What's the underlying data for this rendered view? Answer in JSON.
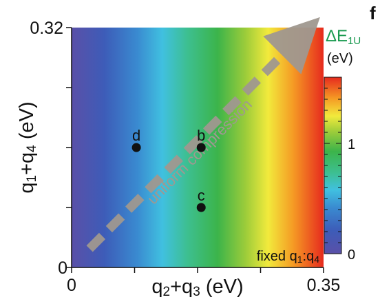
{
  "chart_data": {
    "type": "heatmap",
    "xlabel": {
      "main": "q",
      "s1": "2",
      "mid": "+q",
      "s2": "3",
      "tail": " (eV)"
    },
    "ylabel": {
      "main": "q",
      "s1": "1",
      "mid": "+q",
      "s2": "4",
      "tail": " (eV)"
    },
    "xlim": [
      0,
      0.35
    ],
    "ylim": [
      0,
      0.32
    ],
    "x_tick_labels": [
      "0",
      "0.35"
    ],
    "y_tick_labels": [
      "0",
      "0.32"
    ],
    "grid": false,
    "colormap_varies_along": "x",
    "colorbar": {
      "title_main": "ΔE",
      "title_sub": "1U",
      "units": "(eV)",
      "range": [
        0,
        1.6
      ],
      "tick_labels": [
        "0",
        "1"
      ],
      "tick_values": [
        0,
        1
      ]
    },
    "points": [
      {
        "label": "d",
        "x": 0.09,
        "y": 0.16
      },
      {
        "label": "b",
        "x": 0.18,
        "y": 0.16
      },
      {
        "label": "c",
        "x": 0.18,
        "y": 0.08
      }
    ],
    "annotations": {
      "arrow_label": "uniform compression",
      "arrow_from": [
        0.025,
        0.025
      ],
      "arrow_to": [
        0.31,
        0.3
      ],
      "corner_note": {
        "main": "fixed q",
        "s1": "1",
        "mid": ":q",
        "s2": "4"
      }
    },
    "panel_letter": "f",
    "colors": {
      "arrow": "#a09890",
      "colorbar_title": "#1a9a50",
      "point": "#111111"
    }
  }
}
